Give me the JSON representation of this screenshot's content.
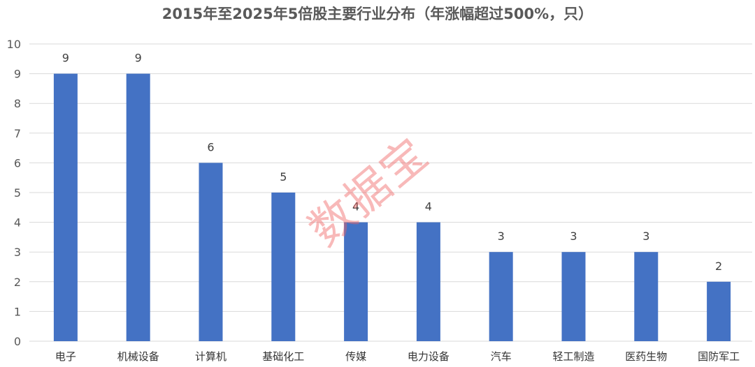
{
  "chart_data": {
    "type": "bar",
    "title": "2015年至2025年5倍股主要行业分布（年涨幅超过500%，只）",
    "categories": [
      "电子",
      "机械设备",
      "计算机",
      "基础化工",
      "传媒",
      "电力设备",
      "汽车",
      "轻工制造",
      "医药生物",
      "国防军工"
    ],
    "values": [
      9,
      9,
      6,
      5,
      4,
      4,
      3,
      3,
      3,
      2
    ],
    "ylim": [
      0,
      10
    ],
    "yticks": [
      0,
      1,
      2,
      3,
      4,
      5,
      6,
      7,
      8,
      9,
      10
    ],
    "grid": true,
    "bar_color": "#4472C4",
    "data_labels": true
  },
  "watermark": "数据宝"
}
